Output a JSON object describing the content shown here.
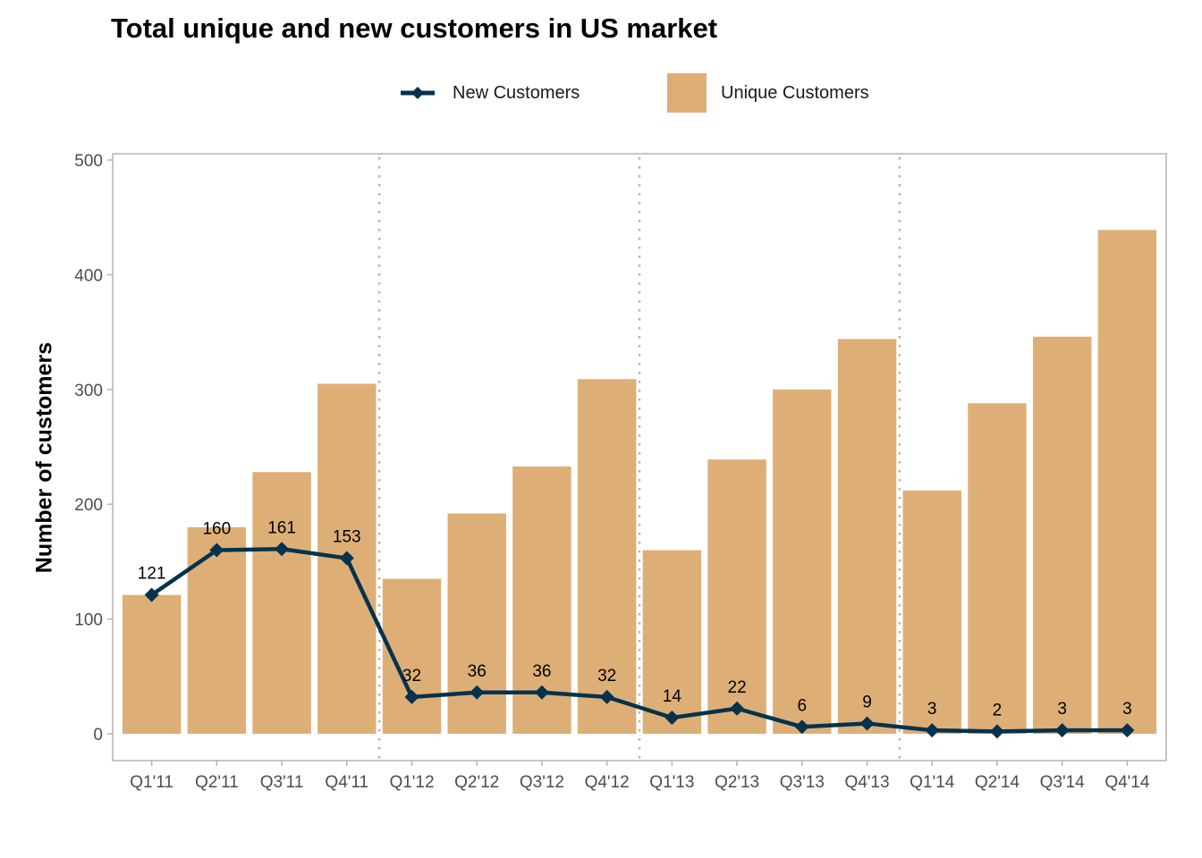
{
  "chart_data": {
    "type": "bar",
    "title": "Total unique and new customers in US market",
    "xlabel": "",
    "ylabel": "Number of customers",
    "ylim": [
      0,
      500
    ],
    "yticks": [
      0,
      100,
      200,
      300,
      400,
      500
    ],
    "grid": false,
    "legend_position": "top",
    "categories": [
      "Q1'11",
      "Q2'11",
      "Q3'11",
      "Q4'11",
      "Q1'12",
      "Q2'12",
      "Q3'12",
      "Q4'12",
      "Q1'13",
      "Q2'13",
      "Q3'13",
      "Q4'13",
      "Q1'14",
      "Q2'14",
      "Q3'14",
      "Q4'14"
    ],
    "series": [
      {
        "name": "Unique Customers",
        "type": "bar",
        "color": "#ddaf77",
        "values": [
          121,
          180,
          228,
          305,
          135,
          192,
          233,
          309,
          160,
          239,
          300,
          344,
          212,
          288,
          346,
          439
        ]
      },
      {
        "name": "New Customers",
        "type": "line",
        "marker": "diamond",
        "color": "#05324d",
        "values": [
          121,
          160,
          161,
          153,
          32,
          36,
          36,
          32,
          14,
          22,
          6,
          9,
          3,
          2,
          3,
          3
        ],
        "data_labels": [
          "121",
          "160",
          "161",
          "153",
          "32",
          "36",
          "36",
          "32",
          "14",
          "22",
          "6",
          "9",
          "3",
          "2",
          "3",
          "3"
        ]
      }
    ],
    "year_separators_after": [
      "Q4'11",
      "Q4'12",
      "Q4'13"
    ],
    "separator_color": "#b3b3b3"
  },
  "legend": {
    "new_label": "New Customers",
    "unique_label": "Unique Customers"
  }
}
